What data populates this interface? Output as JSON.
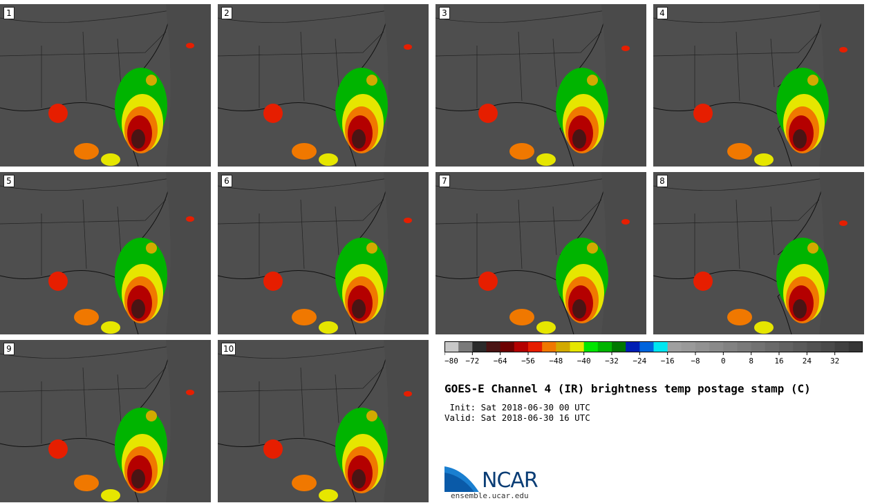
{
  "panels": [
    {
      "label": "1"
    },
    {
      "label": "2"
    },
    {
      "label": "3"
    },
    {
      "label": "4"
    },
    {
      "label": "5"
    },
    {
      "label": "6"
    },
    {
      "label": "7"
    },
    {
      "label": "8"
    },
    {
      "label": "9"
    },
    {
      "label": "10"
    }
  ],
  "colorbar": {
    "ticks": [
      "−80",
      "−72",
      "−64",
      "−56",
      "−48",
      "−40",
      "−32",
      "−24",
      "−16",
      "−8",
      "0",
      "8",
      "16",
      "24",
      "32"
    ],
    "colors": [
      "#c8c8c8",
      "#7a7a7a",
      "#2b2b2b",
      "#4a1414",
      "#6e0000",
      "#b40000",
      "#e61e00",
      "#f07800",
      "#d2aa00",
      "#e6e600",
      "#00e600",
      "#00b400",
      "#007800",
      "#001eb4",
      "#0064dc",
      "#00e6f0",
      "#a0a0a0",
      "#9a9a9a",
      "#929292",
      "#8a8a8a",
      "#828282",
      "#7a7a7a",
      "#727272",
      "#6a6a6a",
      "#626262",
      "#5a5a5a",
      "#525252",
      "#4a4a4a",
      "#404040",
      "#363636"
    ]
  },
  "title": "GOES-E Channel 4 (IR) brightness temp postage stamp (C)",
  "init_line": " Init: Sat 2018-06-30 00 UTC",
  "valid_line": "Valid: Sat 2018-06-30 16 UTC",
  "logo_text": "NCAR",
  "site": "ensemble.ucar.edu"
}
